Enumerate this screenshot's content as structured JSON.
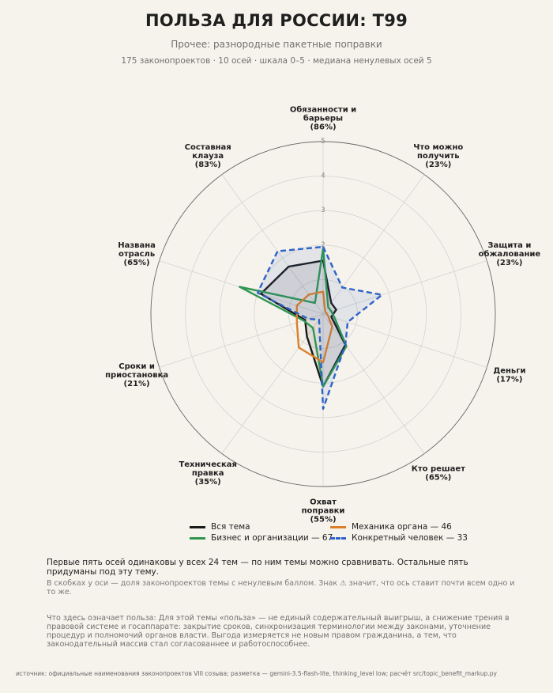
{
  "header": {
    "title": "ПОЛЬЗА ДЛЯ РОССИИ: T99",
    "subtitle": "Прочее: разнородные пакетные поправки",
    "meta": "175 законопроектов · 10 осей · шкала 0–5 · медиана ненулевых осей 5"
  },
  "chart_data": {
    "type": "radar",
    "title": "ПОЛЬЗА ДЛЯ РОССИИ: T99",
    "rmax": 5,
    "ticks": [
      "2",
      "3",
      "4",
      "5"
    ],
    "axes": [
      {
        "lines": [
          "Обязанности и",
          "барьеры",
          "(86%)"
        ]
      },
      {
        "lines": [
          "Что можно",
          "получить",
          "(23%)"
        ]
      },
      {
        "lines": [
          "Защита и",
          "обжалование",
          "(23%)"
        ]
      },
      {
        "lines": [
          "Деньги",
          "(17%)"
        ]
      },
      {
        "lines": [
          "Кто решает",
          "(65%)"
        ]
      },
      {
        "lines": [
          "Охват",
          "поправки",
          "(55%)"
        ]
      },
      {
        "lines": [
          "Техническая",
          "правка",
          "(35%)"
        ]
      },
      {
        "lines": [
          "Сроки и",
          "приостановка",
          "(21%)"
        ]
      },
      {
        "lines": [
          "Названа",
          "отрасль",
          "(65%)"
        ]
      },
      {
        "lines": [
          "Составная",
          "клауза",
          "(83%)"
        ]
      }
    ],
    "series": [
      {
        "name": "Вся тема",
        "color": "#1a1a1a",
        "dash": "none",
        "fill": true,
        "values": [
          1.55,
          0.4,
          0.4,
          0.25,
          1.1,
          2.1,
          0.8,
          0.55,
          1.9,
          1.7
        ]
      },
      {
        "name": "Бизнес и организации — 67",
        "color": "#2e9650",
        "dash": "none",
        "fill": false,
        "values": [
          1.9,
          0.25,
          0.25,
          0.35,
          1.15,
          2.1,
          0.5,
          0.6,
          2.55,
          0.4
        ]
      },
      {
        "name": "Механика органа — 46",
        "color": "#dd7f2a",
        "dash": "none",
        "fill": false,
        "values": [
          0.65,
          0.1,
          0.1,
          0.15,
          0.45,
          1.4,
          1.2,
          0.8,
          0.8,
          0.7
        ]
      },
      {
        "name": "Конкретный человек — 33",
        "color": "#2d62c8",
        "dash": "7,4",
        "fill": true,
        "values": [
          1.95,
          0.95,
          1.8,
          0.75,
          1.1,
          2.75,
          0.2,
          0.45,
          2.0,
          2.25
        ]
      }
    ]
  },
  "legend": [
    {
      "label": "Вся тема",
      "color": "#1a1a1a"
    },
    {
      "label": "Бизнес и организации — 67",
      "color": "#2e9650"
    },
    {
      "label": "Механика органа — 46",
      "color": "#dd7f2a"
    },
    {
      "label": "Конкретный человек — 33",
      "color": "#2d62c8"
    }
  ],
  "notes": {
    "note1": "Первые пять осей одинаковы у всех 24 тем — по ним темы можно сравнивать. Остальные пять придуманы под эту тему.",
    "note2": "В скобках у оси — доля законопроектов темы с ненулевым баллом. Знак ⚠ значит, что ось ставит почти всем одно и то же.",
    "note3": "Что здесь означает польза: Для этой темы «пользa» — не единый содержательный выигрыш, а снижение трения в правовой системе и госаппарате: закрытие сроков, синхронизация терминологии между законами, уточнение процедур и полномочий органов власти. Выгода измеряется не новым правом гражданина, а тем, что законодательный массив стал согласованнее и работоспособнее.",
    "source": "источник: официальные наименования законопроектов VIII созыва; разметка — gemini-3.5-flash-lite, thinking_level low; расчёт src/topic_benefit_markup.py"
  }
}
